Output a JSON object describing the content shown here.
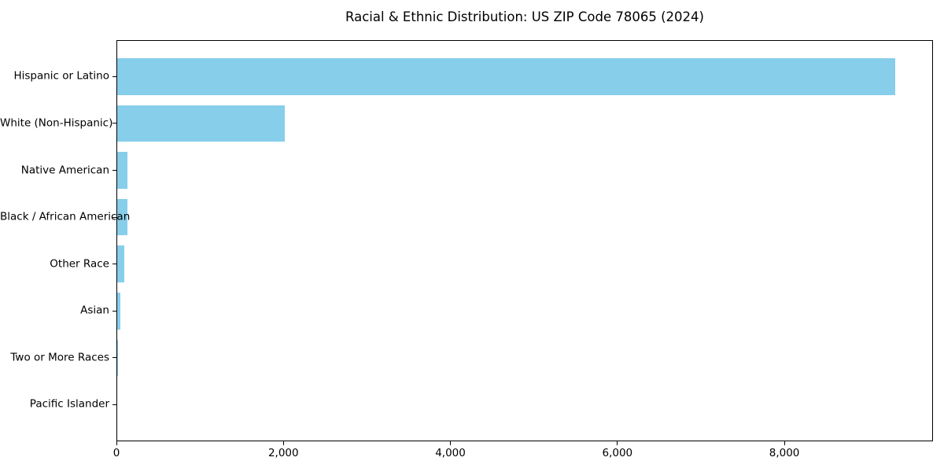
{
  "figure": {
    "background_color": "#FFFFFF"
  },
  "chart_data": {
    "type": "bar",
    "orientation": "horizontal",
    "title": "Racial & Ethnic Distribution: US ZIP Code 78065 (2024)",
    "categories": [
      "Hispanic or Latino",
      "White (Non-Hispanic)",
      "Native American",
      "Black / African American",
      "Other Race",
      "Asian",
      "Two or More Races",
      "Pacific Islander"
    ],
    "values": [
      9315,
      2005,
      125,
      118,
      85,
      38,
      10,
      0
    ],
    "xlabel": "",
    "ylabel": "",
    "xlim": [
      0,
      9780
    ],
    "xticks": {
      "values": [
        0,
        2000,
        4000,
        6000,
        8000
      ],
      "labels": [
        "0",
        "2,000",
        "4,000",
        "6,000",
        "8,000"
      ]
    },
    "bar_color": "#87CEEB",
    "axis_color": "#000000",
    "text_color": "#000000",
    "grid": false,
    "legend": false
  }
}
